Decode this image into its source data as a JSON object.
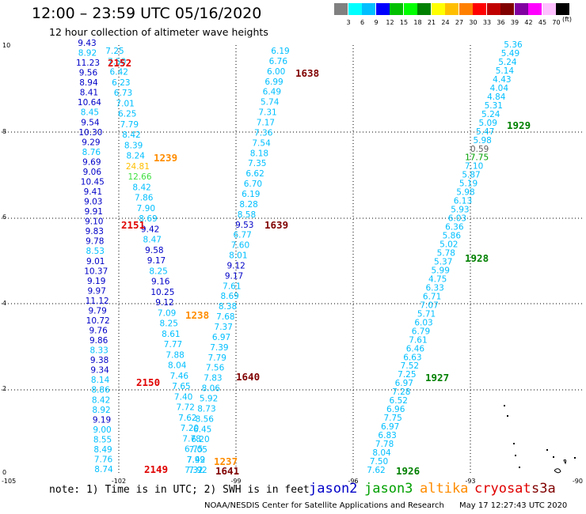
{
  "header": {
    "title": "12:00 – 23:59 UTC 05/16/2020",
    "subtitle": "12 hour collection of altimeter wave heights"
  },
  "colorbar": {
    "unit": "(ft)",
    "colors": [
      "#808080",
      "#00ffff",
      "#00bfff",
      "#0000ff",
      "#00c000",
      "#00ff00",
      "#008000",
      "#ffff00",
      "#ffbf00",
      "#ff8000",
      "#ff0000",
      "#c00000",
      "#800000",
      "#8000a0",
      "#ff00ff",
      "#ffc0ff",
      "#000000"
    ],
    "labels": [
      "3",
      "6",
      "9",
      "12",
      "15",
      "18",
      "21",
      "24",
      "27",
      "30",
      "33",
      "36",
      "39",
      "42",
      "45",
      "70"
    ]
  },
  "axes": {
    "x_ticks": [
      "-105",
      "-102",
      "-99",
      "-96",
      "-93",
      "-90"
    ],
    "y_ticks": [
      "0",
      "2",
      "4",
      "6",
      "8",
      "10"
    ]
  },
  "tracks": [
    {
      "id": "t1",
      "values": [
        "9.43",
        "8.92",
        "11.23",
        "9.56",
        "8.94",
        "8.41",
        "10.64",
        "8.45",
        "9.54",
        "10.30",
        "9.29",
        "8.76",
        "9.69",
        "9.06",
        "10.45",
        "9.41",
        "9.03",
        "9.91",
        "9.10",
        "9.83",
        "9.78",
        "8.53",
        "9.01",
        "10.37",
        "9.19",
        "9.97",
        "11.12",
        "9.79",
        "10.72",
        "9.76",
        "9.86",
        "8.33",
        "9.38",
        "9.34",
        "8.14",
        "8.86",
        "8.42",
        "8.92",
        "9.19",
        "9.00",
        "8.55",
        "8.49",
        "7.76",
        "8.74"
      ],
      "colors": [
        "#0000c8",
        "#00bfff",
        "#0000c8",
        "#0000c8",
        "#0000c8",
        "#0000c8",
        "#0000c8",
        "#00bfff",
        "#0000c8",
        "#0000c8",
        "#0000c8",
        "#00bfff",
        "#0000c8",
        "#0000c8",
        "#0000c8",
        "#0000c8",
        "#0000c8",
        "#0000c8",
        "#0000c8",
        "#0000c8",
        "#0000c8",
        "#00bfff",
        "#0000c8",
        "#0000c8",
        "#0000c8",
        "#0000c8",
        "#0000c8",
        "#0000c8",
        "#0000c8",
        "#0000c8",
        "#0000c8",
        "#00bfff",
        "#0000c8",
        "#0000c8",
        "#00bfff",
        "#00bfff",
        "#00bfff",
        "#00bfff",
        "#0000c8",
        "#00bfff",
        "#00bfff",
        "#00bfff",
        "#00bfff",
        "#00bfff"
      ]
    },
    {
      "id": "t2",
      "values": [
        "7.25",
        "7.50",
        "6.42",
        "6.23",
        "6.73",
        "7.01",
        "6.25",
        "7.79",
        "8.42",
        "8.39",
        "8.24",
        "24.81",
        "12.66",
        "8.42",
        "7.86",
        "7.90",
        "8.69",
        "9.42",
        "8.47",
        "9.58",
        "9.17",
        "8.25",
        "9.16",
        "10.25",
        "9.12",
        "7.09",
        "8.25",
        "8.61",
        "7.77",
        "7.88",
        "8.04",
        "7.46",
        "7.65",
        "7.40",
        "7.72",
        "7.62",
        "7.20",
        "7.78",
        "6.75",
        "7.99",
        "7.92"
      ],
      "colors": [
        "#00bfff",
        "#00bfff",
        "#00bfff",
        "#00bfff",
        "#00bfff",
        "#00bfff",
        "#00bfff",
        "#00bfff",
        "#00bfff",
        "#00bfff",
        "#00bfff",
        "#ffbf00",
        "#40e040",
        "#00bfff",
        "#00bfff",
        "#00bfff",
        "#00bfff",
        "#0000c8",
        "#00bfff",
        "#0000c8",
        "#0000c8",
        "#00bfff",
        "#0000c8",
        "#0000c8",
        "#0000c8",
        "#00bfff",
        "#00bfff",
        "#00bfff",
        "#00bfff",
        "#00bfff",
        "#00bfff",
        "#00bfff",
        "#00bfff",
        "#00bfff",
        "#00bfff",
        "#00bfff",
        "#00bfff",
        "#00bfff",
        "#00bfff",
        "#00bfff",
        "#00bfff"
      ]
    },
    {
      "id": "t3",
      "values": [
        "6.19",
        "6.76",
        "6.00",
        "6.99",
        "6.49",
        "5.74",
        "7.31",
        "7.17",
        "7.36",
        "7.54",
        "8.18",
        "7.35",
        "6.62",
        "6.70",
        "6.19",
        "8.28",
        "8.58",
        "9.53",
        "6.77",
        "7.60",
        "8.01",
        "9.12",
        "9.17",
        "7.61",
        "8.69",
        "8.38",
        "7.68",
        "7.37",
        "6.97",
        "7.39",
        "7.79",
        "7.56",
        "7.83",
        "8.06",
        "5.92",
        "8.73",
        "8.56",
        "6.45",
        "6.20",
        "7.05",
        "7.42",
        "7.32"
      ],
      "colors": [
        "#00bfff",
        "#00bfff",
        "#00bfff",
        "#00bfff",
        "#00bfff",
        "#00bfff",
        "#00bfff",
        "#00bfff",
        "#00bfff",
        "#00bfff",
        "#00bfff",
        "#00bfff",
        "#00bfff",
        "#00bfff",
        "#00bfff",
        "#00bfff",
        "#00bfff",
        "#0000c8",
        "#00bfff",
        "#00bfff",
        "#00bfff",
        "#0000c8",
        "#0000c8",
        "#00bfff",
        "#00bfff",
        "#00bfff",
        "#00bfff",
        "#00bfff",
        "#00bfff",
        "#00bfff",
        "#00bfff",
        "#00bfff",
        "#00bfff",
        "#00bfff",
        "#00bfff",
        "#00bfff",
        "#00bfff",
        "#00bfff",
        "#00bfff",
        "#00bfff",
        "#00bfff",
        "#00bfff"
      ]
    },
    {
      "id": "t4",
      "values": [
        "5.36",
        "5.49",
        "5.24",
        "5.14",
        "4.43",
        "4.04",
        "4.84",
        "5.31",
        "5.24",
        "5.09",
        "5.47",
        "5.98",
        "0.59",
        "17.75",
        "7.10",
        "5.87",
        "5.19",
        "5.98",
        "6.13",
        "5.93",
        "6.03",
        "6.36",
        "5.86",
        "5.02",
        "5.78",
        "5.37",
        "5.99",
        "4.75",
        "6.33",
        "6.71",
        "7.07",
        "5.71",
        "6.03",
        "6.79",
        "7.61",
        "6.46",
        "6.63",
        "7.52",
        "7.25",
        "6.97",
        "7.28",
        "6.52",
        "6.96",
        "7.75",
        "6.97",
        "6.83",
        "7.78",
        "8.04",
        "7.50",
        "7.62"
      ],
      "colors": [
        "#00bfff",
        "#00bfff",
        "#00bfff",
        "#00bfff",
        "#00bfff",
        "#00bfff",
        "#00bfff",
        "#00bfff",
        "#00bfff",
        "#00bfff",
        "#00bfff",
        "#00bfff",
        "#606060",
        "#00a000",
        "#00bfff",
        "#00bfff",
        "#00bfff",
        "#00bfff",
        "#00bfff",
        "#00bfff",
        "#00bfff",
        "#00bfff",
        "#00bfff",
        "#00bfff",
        "#00bfff",
        "#00bfff",
        "#00bfff",
        "#00bfff",
        "#00bfff",
        "#00bfff",
        "#00bfff",
        "#00bfff",
        "#00bfff",
        "#00bfff",
        "#00bfff",
        "#00bfff",
        "#00bfff",
        "#00bfff",
        "#00bfff",
        "#00bfff",
        "#00bfff",
        "#00bfff",
        "#00bfff",
        "#00bfff",
        "#00bfff",
        "#00bfff",
        "#00bfff",
        "#00bfff",
        "#00bfff",
        "#00bfff"
      ]
    }
  ],
  "time_labels": [
    {
      "text": "2152",
      "color": "#e00000"
    },
    {
      "text": "2151",
      "color": "#e00000"
    },
    {
      "text": "2150",
      "color": "#e00000"
    },
    {
      "text": "2149",
      "color": "#e00000"
    },
    {
      "text": "1239",
      "color": "#ff8c00"
    },
    {
      "text": "1238",
      "color": "#ff8c00"
    },
    {
      "text": "1237",
      "color": "#ff8c00"
    },
    {
      "text": "1638",
      "color": "#800000"
    },
    {
      "text": "1639",
      "color": "#800000"
    },
    {
      "text": "1640",
      "color": "#800000"
    },
    {
      "text": "1641",
      "color": "#800000"
    },
    {
      "text": "1929",
      "color": "#008000"
    },
    {
      "text": "1928",
      "color": "#008000"
    },
    {
      "text": "1927",
      "color": "#008000"
    },
    {
      "text": "1926",
      "color": "#008000"
    }
  ],
  "note": "note: 1) Time is in UTC; 2) SWH is in feet",
  "satellites": [
    {
      "name": "jason2",
      "color": "#0000c8"
    },
    {
      "name": "jason3",
      "color": "#00a000"
    },
    {
      "name": "altika",
      "color": "#ff8c00"
    },
    {
      "name": "cryosat",
      "color": "#e00000"
    },
    {
      "name": "s3a",
      "color": "#800000"
    }
  ],
  "footer": {
    "credit": "NOAA/NESDIS Center for Satellite Applications and Research",
    "generated": "May 17 12:27:43 UTC 2020"
  }
}
